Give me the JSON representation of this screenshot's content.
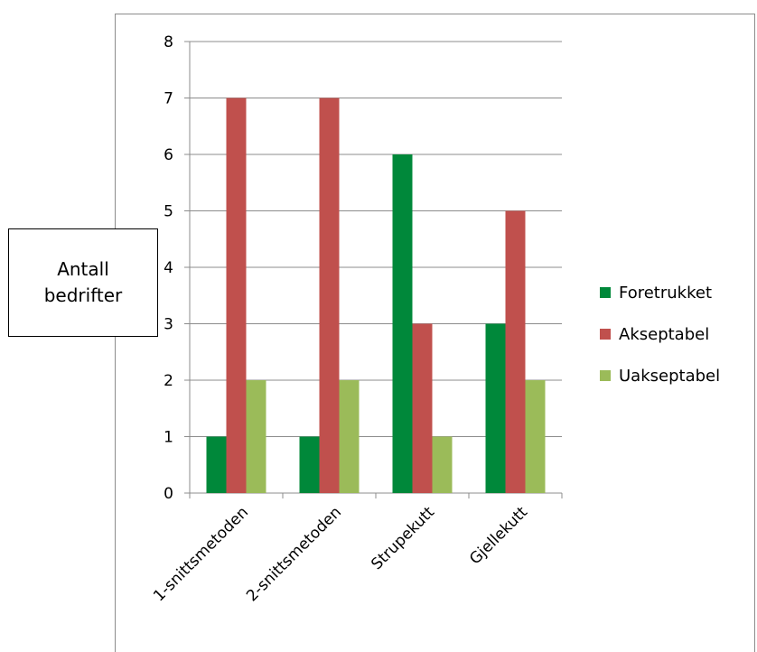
{
  "chart_data": {
    "type": "bar",
    "title": "",
    "xlabel": "",
    "ylabel": "Antall bedrifter",
    "ylim": [
      0,
      8
    ],
    "yticks": [
      0,
      1,
      2,
      3,
      4,
      5,
      6,
      7,
      8
    ],
    "grid": "horizontal",
    "legend_position": "right",
    "categories": [
      "1-snittsmetoden",
      "2-snittsmetoden",
      "Strupekutt",
      "Gjellekutt"
    ],
    "series": [
      {
        "name": "Foretrukket",
        "color": "#00883a",
        "values": [
          1,
          1,
          6,
          3
        ]
      },
      {
        "name": "Akseptabel",
        "color": "#c0504d",
        "values": [
          7,
          7,
          3,
          5
        ]
      },
      {
        "name": "Uakseptabel",
        "color": "#9bbb59",
        "values": [
          2,
          2,
          1,
          2
        ]
      }
    ]
  }
}
